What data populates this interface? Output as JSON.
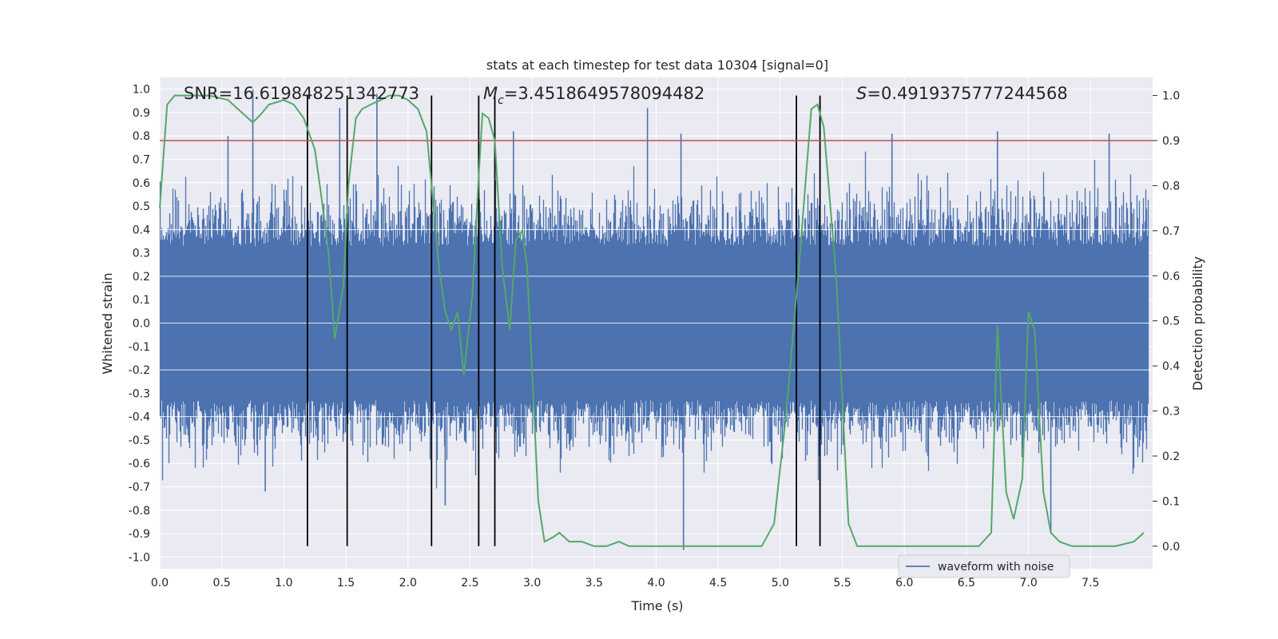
{
  "chart_data": {
    "type": "line",
    "title": "stats at each timestep for test data 10304 [signal=0]",
    "xlabel": "Time (s)",
    "ylabel": "Whitened strain",
    "y2label": "Detection probability",
    "xlim": [
      0.0,
      8.0
    ],
    "ylim": [
      -1.05,
      1.05
    ],
    "y2lim": [
      -0.05,
      1.04
    ],
    "xticks": [
      0.0,
      0.5,
      1.0,
      1.5,
      2.0,
      2.5,
      3.0,
      3.5,
      4.0,
      4.5,
      5.0,
      5.5,
      6.0,
      6.5,
      7.0,
      7.5
    ],
    "xtick_labels": [
      "0.0",
      "0.5",
      "1.0",
      "1.5",
      "2.0",
      "2.5",
      "3.0",
      "3.5",
      "4.0",
      "4.5",
      "5.0",
      "5.5",
      "6.0",
      "6.5",
      "7.0",
      "7.5"
    ],
    "yticks": [
      1.0,
      0.9,
      0.8,
      0.7,
      0.6,
      0.5,
      0.4,
      0.3,
      0.2,
      0.1,
      0.0,
      -0.1,
      -0.2,
      -0.3,
      -0.4,
      -0.5,
      -0.6,
      -0.7,
      -0.8,
      -0.9,
      -1.0
    ],
    "ytick_labels": [
      "1.0",
      "0.9",
      "0.8",
      "0.7",
      "0.6",
      "0.5",
      "0.4",
      "0.3",
      "0.2",
      "0.1",
      "0.0",
      "-0.1",
      "-0.2",
      "-0.3",
      "-0.4",
      "-0.5",
      "-0.6",
      "-0.7",
      "-0.8",
      "-0.9",
      "-1.0"
    ],
    "y2ticks": [
      1.0,
      0.9,
      0.8,
      0.7,
      0.6,
      0.5,
      0.4,
      0.3,
      0.2,
      0.1,
      0.0
    ],
    "y2tick_labels": [
      "1.0",
      "0.9",
      "0.8",
      "0.7",
      "0.6",
      "0.5",
      "0.4",
      "0.3",
      "0.2",
      "0.1",
      "0.0"
    ],
    "annotations": {
      "snr": "SNR=16.619848251342773",
      "mc_symbol": "M",
      "mc_sub": "c",
      "mc_value": "=3.4518649578094482",
      "s_symbol": "S",
      "s_value": "=0.4919375777244568"
    },
    "threshold": {
      "value": 0.9,
      "axis": "y2",
      "color": "#c44e52"
    },
    "vertical_lines": [
      1.19,
      1.51,
      2.19,
      2.57,
      2.7,
      5.13,
      5.32
    ],
    "series": [
      {
        "name": "waveform with noise",
        "axis": "y",
        "color": "#4c72b0",
        "kind": "noise-band",
        "core_amplitude": 0.33,
        "peaks": [
          {
            "x": 0.75,
            "y": 1.0
          },
          {
            "x": 0.55,
            "y": 0.8
          },
          {
            "x": 1.45,
            "y": 0.92
          },
          {
            "x": 1.75,
            "y": 0.98
          },
          {
            "x": 2.85,
            "y": 0.82
          },
          {
            "x": 3.93,
            "y": 0.92
          },
          {
            "x": 4.2,
            "y": 0.81
          },
          {
            "x": 5.9,
            "y": 0.81
          },
          {
            "x": 6.75,
            "y": 0.82
          },
          {
            "x": 7.65,
            "y": 0.81
          },
          {
            "x": 4.22,
            "y": -0.97
          },
          {
            "x": 7.18,
            "y": -0.9
          },
          {
            "x": 0.85,
            "y": -0.72
          },
          {
            "x": 2.3,
            "y": -0.78
          }
        ]
      },
      {
        "name": "Detection probability",
        "axis": "y2",
        "color": "#55a868",
        "x": [
          0.0,
          0.06,
          0.12,
          0.2,
          0.4,
          0.55,
          0.63,
          0.75,
          0.82,
          0.88,
          1.0,
          1.08,
          1.16,
          1.25,
          1.3,
          1.36,
          1.41,
          1.48,
          1.52,
          1.58,
          1.63,
          1.7,
          1.78,
          1.85,
          1.93,
          2.0,
          2.08,
          2.15,
          2.25,
          2.3,
          2.35,
          2.4,
          2.45,
          2.52,
          2.57,
          2.6,
          2.65,
          2.7,
          2.76,
          2.82,
          2.87,
          2.92,
          2.96,
          3.05,
          3.1,
          3.17,
          3.22,
          3.3,
          3.4,
          3.5,
          3.6,
          3.7,
          3.78,
          3.85,
          3.95,
          4.1,
          4.3,
          4.5,
          4.7,
          4.85,
          4.95,
          5.05,
          5.15,
          5.25,
          5.3,
          5.35,
          5.45,
          5.55,
          5.62,
          5.8,
          6.0,
          6.3,
          6.6,
          6.7,
          6.75,
          6.82,
          6.88,
          6.95,
          7.0,
          7.05,
          7.12,
          7.18,
          7.25,
          7.35,
          7.5,
          7.7,
          7.85,
          7.93
        ],
        "values": [
          0.75,
          0.98,
          1.0,
          1.0,
          1.0,
          0.99,
          0.97,
          0.94,
          0.96,
          0.98,
          0.99,
          0.98,
          0.95,
          0.88,
          0.78,
          0.65,
          0.46,
          0.58,
          0.8,
          0.95,
          0.97,
          0.98,
          0.99,
          1.0,
          1.0,
          0.99,
          0.97,
          0.92,
          0.62,
          0.52,
          0.48,
          0.52,
          0.38,
          0.56,
          0.82,
          0.96,
          0.95,
          0.9,
          0.62,
          0.48,
          0.68,
          0.7,
          0.62,
          0.1,
          0.01,
          0.02,
          0.03,
          0.01,
          0.01,
          0.0,
          0.0,
          0.01,
          0.0,
          0.0,
          0.0,
          0.0,
          0.0,
          0.0,
          0.0,
          0.0,
          0.05,
          0.3,
          0.62,
          0.97,
          0.98,
          0.93,
          0.6,
          0.05,
          0.0,
          0.0,
          0.0,
          0.0,
          0.0,
          0.03,
          0.49,
          0.12,
          0.06,
          0.15,
          0.52,
          0.48,
          0.12,
          0.03,
          0.01,
          0.0,
          0.0,
          0.0,
          0.01,
          0.03
        ]
      }
    ],
    "legend": {
      "placement": "lower-center-right",
      "entries": [
        "waveform with noise"
      ]
    }
  }
}
